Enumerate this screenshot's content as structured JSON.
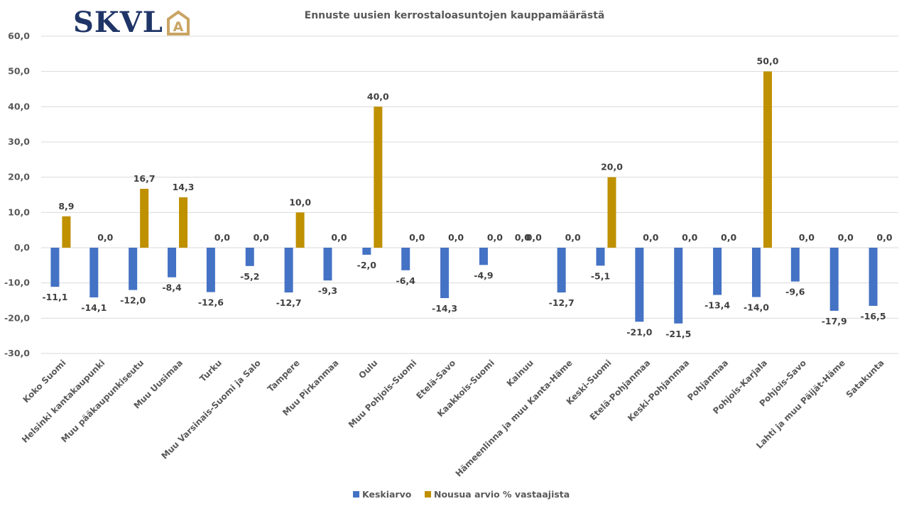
{
  "logo": {
    "text": "SKVL",
    "emblem_letter": "A",
    "brand_color": "#1f3567",
    "emblem_color": "#c9a463"
  },
  "chart_data": {
    "type": "bar",
    "title": "Ennuste uusien kerrostaloasuntojen kauppamäärästä",
    "xlabel": "",
    "ylabel": "",
    "ylim": [
      -30,
      60
    ],
    "yticks": [
      60,
      50,
      40,
      30,
      20,
      10,
      0,
      -10,
      -20,
      -30
    ],
    "ytick_labels": [
      "60,0",
      "50,0",
      "40,0",
      "30,0",
      "20,0",
      "10,0",
      "0,0",
      "-10,0",
      "-20,0",
      "-30,0"
    ],
    "grid": true,
    "legend_position": "bottom",
    "categories": [
      "Koko Suomi",
      "Helsinki kantakaupunki",
      "Muu pääkaupunkiseutu",
      "Muu Uusimaa",
      "Turku",
      "Muu Varsinais-Suomi ja Salo",
      "Tampere",
      "Muu Pirkanmaa",
      "Oulu",
      "Muu Pohjois-Suomi",
      "Etelä-Savo",
      "Kaakkois-Suomi",
      "Kainuu",
      "Hämeenlinna ja muu Kanta-Häme",
      "Keski-Suomi",
      "Etelä-Pohjanmaa",
      "Keski-Pohjanmaa",
      "Pohjanmaa",
      "Pohjois-Karjala",
      "Pohjois-Savo",
      "Lahti ja muu Päijät-Häme",
      "Satakunta"
    ],
    "series": [
      {
        "name": "Keskiarvo",
        "color": "#4472c4",
        "values": [
          -11.1,
          -14.1,
          -12.0,
          -8.4,
          -12.6,
          -5.2,
          -12.7,
          -9.3,
          -2.0,
          -6.4,
          -14.3,
          -4.9,
          0.0,
          -12.7,
          -5.1,
          -21.0,
          -21.5,
          -13.4,
          -14.0,
          -9.6,
          -17.9,
          -16.5
        ],
        "labels": [
          "-11,1",
          "-14,1",
          "-12,0",
          "-8,4",
          "-12,6",
          "-5,2",
          "-12,7",
          "-9,3",
          "-2,0",
          "-6,4",
          "-14,3",
          "-4,9",
          "0,0",
          "-12,7",
          "-5,1",
          "-21,0",
          "-21,5",
          "-13,4",
          "-14,0",
          "-9,6",
          "-17,9",
          "-16,5"
        ]
      },
      {
        "name": "Nousua arvio % vastaajista",
        "color": "#bf9000",
        "values": [
          8.9,
          0.0,
          16.7,
          14.3,
          0.0,
          0.0,
          10.0,
          0.0,
          40.0,
          0.0,
          0.0,
          0.0,
          0.0,
          0.0,
          20.0,
          0.0,
          0.0,
          0.0,
          50.0,
          0.0,
          0.0,
          0.0
        ],
        "labels": [
          "8,9",
          "0,0",
          "16,7",
          "14,3",
          "0,0",
          "0,0",
          "10,0",
          "0,0",
          "40,0",
          "0,0",
          "0,0",
          "0,0",
          "0,0",
          "0,0",
          "20,0",
          "0,0",
          "0,0",
          "0,0",
          "50,0",
          "0,0",
          "0,0",
          "0,0"
        ]
      }
    ]
  }
}
